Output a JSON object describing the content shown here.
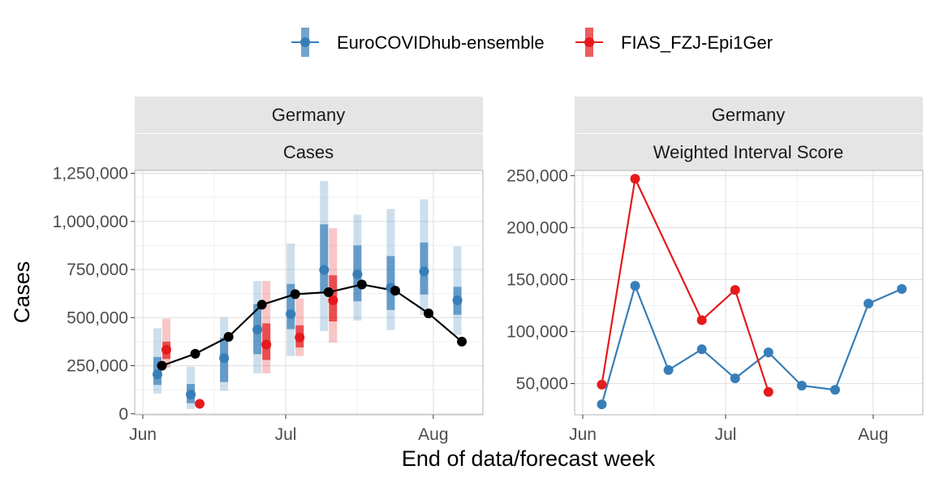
{
  "legend": {
    "items": [
      {
        "name": "EuroCOVIDhub-ensemble",
        "color": "#377EB8"
      },
      {
        "name": "FIAS_FZJ-Epi1Ger",
        "color": "#E41A1C"
      }
    ]
  },
  "xlabel": "End of data/forecast week",
  "chart_data": [
    {
      "type": "line",
      "panel": "Cases",
      "strip_top": "Germany",
      "strip_bottom": "Cases",
      "ylabel": "Cases",
      "x_ticks": [
        "Jun",
        "Jul",
        "Aug"
      ],
      "y_ticks": [
        "0",
        "250,000",
        "500,000",
        "750,000",
        "1,000,000",
        "1,250,000"
      ],
      "ylim": [
        -5000,
        1265000
      ],
      "observed": {
        "name": "Observed",
        "color": "#000000",
        "points": [
          {
            "x": "2021-06-05",
            "y": 250000
          },
          {
            "x": "2021-06-12",
            "y": 312000
          },
          {
            "x": "2021-06-19",
            "y": 400000
          },
          {
            "x": "2021-06-26",
            "y": 567000
          },
          {
            "x": "2021-07-03",
            "y": 622000
          },
          {
            "x": "2021-07-10",
            "y": 632000
          },
          {
            "x": "2021-07-17",
            "y": 672000
          },
          {
            "x": "2021-07-24",
            "y": 640000
          },
          {
            "x": "2021-07-31",
            "y": 522000
          },
          {
            "x": "2021-08-07",
            "y": 375000
          }
        ]
      },
      "forecasts": [
        {
          "name": "EuroCOVIDhub-ensemble",
          "color": "#377EB8",
          "points": [
            {
              "x": "2021-06-05",
              "median": 205000,
              "inner": [
                150000,
                295000
              ],
              "outer": [
                105000,
                445000
              ]
            },
            {
              "x": "2021-06-12",
              "median": 100000,
              "inner": [
                55000,
                155000
              ],
              "outer": [
                25000,
                245000
              ]
            },
            {
              "x": "2021-06-19",
              "median": 290000,
              "inner": [
                165000,
                395000
              ],
              "outer": [
                120000,
                500000
              ]
            },
            {
              "x": "2021-06-26",
              "median": 438000,
              "inner": [
                310000,
                570000
              ],
              "outer": [
                210000,
                690000
              ]
            },
            {
              "x": "2021-07-03",
              "median": 518000,
              "inner": [
                440000,
                675000
              ],
              "outer": [
                300000,
                885000
              ]
            },
            {
              "x": "2021-07-10",
              "median": 748000,
              "inner": [
                630000,
                985000
              ],
              "outer": [
                430000,
                1210000
              ]
            },
            {
              "x": "2021-07-17",
              "median": 725000,
              "inner": [
                585000,
                875000
              ],
              "outer": [
                485000,
                1035000
              ]
            },
            {
              "x": "2021-07-24",
              "median": 655000,
              "inner": [
                540000,
                820000
              ],
              "outer": [
                435000,
                1065000
              ]
            },
            {
              "x": "2021-07-31",
              "median": 740000,
              "inner": [
                620000,
                890000
              ],
              "outer": [
                515000,
                1115000
              ]
            },
            {
              "x": "2021-08-07",
              "median": 590000,
              "inner": [
                515000,
                660000
              ],
              "outer": [
                410000,
                870000
              ]
            }
          ]
        },
        {
          "name": "FIAS_FZJ-Epi1Ger",
          "color": "#E41A1C",
          "points": [
            {
              "x": "2021-06-05",
              "median": 333000,
              "inner": [
                285000,
                375000
              ],
              "outer": [
                240000,
                495000
              ]
            },
            {
              "x": "2021-06-12",
              "median": 52000,
              "inner": [
                45000,
                60000
              ],
              "outer": [
                40000,
                65000
              ]
            },
            {
              "x": "2021-06-26",
              "median": 360000,
              "inner": [
                280000,
                470000
              ],
              "outer": [
                210000,
                690000
              ]
            },
            {
              "x": "2021-07-03",
              "median": 397000,
              "inner": [
                345000,
                460000
              ],
              "outer": [
                300000,
                600000
              ]
            },
            {
              "x": "2021-07-10",
              "median": 590000,
              "inner": [
                480000,
                720000
              ],
              "outer": [
                370000,
                965000
              ]
            }
          ]
        }
      ]
    },
    {
      "type": "line",
      "panel": "Weighted Interval Score",
      "strip_top": "Germany",
      "strip_bottom": "Weighted Interval Score",
      "x_ticks": [
        "Jun",
        "Jul",
        "Aug"
      ],
      "y_ticks": [
        "50,000",
        "100,000",
        "150,000",
        "200,000",
        "250,000"
      ],
      "ylim": [
        20000,
        255000
      ],
      "series": [
        {
          "name": "EuroCOVIDhub-ensemble",
          "color": "#377EB8",
          "points": [
            {
              "x": "2021-06-05",
              "y": 30000
            },
            {
              "x": "2021-06-12",
              "y": 144000
            },
            {
              "x": "2021-06-19",
              "y": 63000
            },
            {
              "x": "2021-06-26",
              "y": 83000
            },
            {
              "x": "2021-07-03",
              "y": 55000
            },
            {
              "x": "2021-07-10",
              "y": 80000
            },
            {
              "x": "2021-07-17",
              "y": 48000
            },
            {
              "x": "2021-07-24",
              "y": 44000
            },
            {
              "x": "2021-07-31",
              "y": 127000
            },
            {
              "x": "2021-08-07",
              "y": 141000
            }
          ]
        },
        {
          "name": "FIAS_FZJ-Epi1Ger",
          "color": "#E41A1C",
          "points": [
            {
              "x": "2021-06-05",
              "y": 49000
            },
            {
              "x": "2021-06-12",
              "y": 247000
            },
            {
              "x": "2021-06-26",
              "y": 111000
            },
            {
              "x": "2021-07-03",
              "y": 140000
            },
            {
              "x": "2021-07-10",
              "y": 42000
            }
          ]
        }
      ]
    }
  ]
}
